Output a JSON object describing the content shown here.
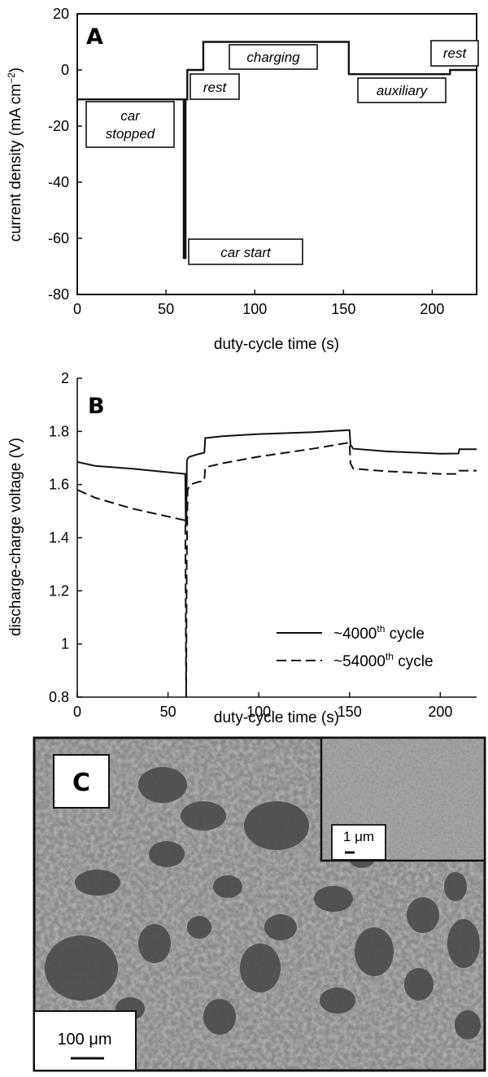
{
  "chart_data": [
    {
      "panel": "A",
      "type": "line",
      "xlabel": "duty-cycle time (s)",
      "ylabel_main": "current density (mA cm",
      "ylabel_sup": "−2",
      "ylabel_end": ")",
      "xlim": [
        0,
        225
      ],
      "ylim": [
        -80,
        20
      ],
      "xticks": [
        0,
        50,
        100,
        150,
        200
      ],
      "yticks": [
        -80,
        -60,
        -40,
        -20,
        0,
        20
      ],
      "grid": false,
      "x": [
        0,
        60,
        60,
        61,
        61,
        62,
        62,
        71,
        71,
        153,
        153,
        210,
        210,
        225
      ],
      "y": [
        -10.5,
        -10.5,
        -67,
        -67,
        -10.5,
        -10.5,
        0,
        0,
        10,
        10,
        -1.5,
        -1.5,
        0,
        0
      ],
      "annotations": [
        {
          "lines": [
            "car",
            "stopped"
          ]
        },
        {
          "lines": [
            "rest"
          ]
        },
        {
          "lines": [
            "charging"
          ]
        },
        {
          "lines": [
            "auxiliary"
          ]
        },
        {
          "lines": [
            "rest"
          ]
        },
        {
          "lines": [
            "car start"
          ]
        }
      ]
    },
    {
      "panel": "B",
      "type": "line",
      "xlabel": "duty-cycle time (s)",
      "ylabel": "discharge-charge voltage (V)",
      "xlim": [
        0,
        220
      ],
      "ylim": [
        0.8,
        2.0
      ],
      "xticks": [
        0,
        50,
        100,
        150,
        200
      ],
      "yticks": [
        0.8,
        1.0,
        1.2,
        1.4,
        1.6,
        1.8,
        2.0
      ],
      "grid": false,
      "legend": "bottom-right",
      "series": [
        {
          "legend_pre": "~4000",
          "legend_sup": "th",
          "legend_post": " cycle",
          "dash": "solid",
          "x": [
            0,
            10,
            30,
            59.5,
            59.8,
            60.1,
            60.4,
            61,
            62,
            67,
            70,
            70.5,
            80,
            100,
            130,
            150,
            150.5,
            152,
            170,
            200,
            210,
            210.5,
            220
          ],
          "y": [
            1.685,
            1.67,
            1.66,
            1.64,
            1.44,
            1.46,
            1.69,
            1.7,
            1.705,
            1.715,
            1.72,
            1.775,
            1.782,
            1.79,
            1.797,
            1.805,
            1.75,
            1.735,
            1.725,
            1.716,
            1.717,
            1.733,
            1.733
          ]
        },
        {
          "legend_pre": "~54000",
          "legend_sup": "th",
          "legend_post": " cycle",
          "dash": "dashed",
          "x": [
            0,
            10,
            30,
            59.5,
            60,
            60.3,
            60.8,
            61.5,
            62,
            67,
            70,
            70.5,
            80,
            100,
            130,
            150,
            150.5,
            152,
            170,
            200,
            210,
            210.5,
            220
          ],
          "y": [
            1.58,
            1.55,
            1.51,
            1.465,
            0.785,
            1.3,
            1.58,
            1.59,
            1.6,
            1.61,
            1.615,
            1.665,
            1.68,
            1.705,
            1.735,
            1.758,
            1.68,
            1.66,
            1.65,
            1.64,
            1.64,
            1.652,
            1.652
          ]
        }
      ]
    }
  ],
  "micrograph": {
    "panel": "C",
    "scale_bar": "100 μm",
    "inset_scale_bar": "1 μm"
  },
  "colors": {
    "line": "#111111",
    "micrograph_base": "#8c8c8c",
    "pore": "#2a2a2a",
    "inset_base": "#a4a4a4"
  }
}
